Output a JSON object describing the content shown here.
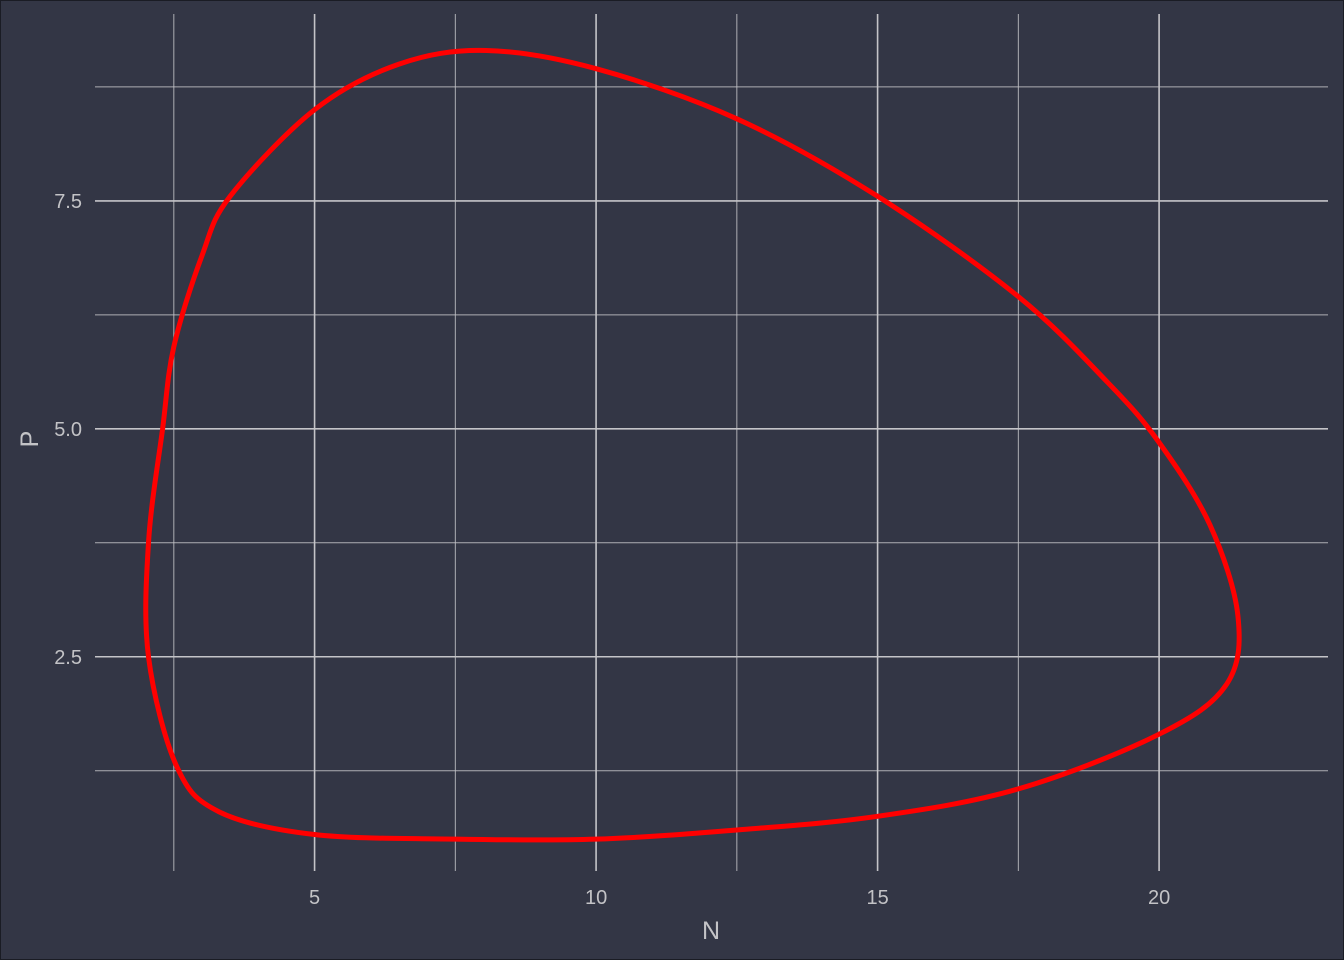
{
  "chart_data": {
    "type": "line",
    "title": "",
    "xlabel": "N",
    "ylabel": "P",
    "xlim": [
      1.1,
      23.0
    ],
    "ylim": [
      0.15,
      9.55
    ],
    "x_ticks": [
      {
        "value": 5,
        "label": "5"
      },
      {
        "value": 10,
        "label": "10"
      },
      {
        "value": 15,
        "label": "15"
      },
      {
        "value": 20,
        "label": "20"
      }
    ],
    "y_ticks": [
      {
        "value": 2.5,
        "label": "2.5"
      },
      {
        "value": 5.0,
        "label": "5.0"
      },
      {
        "value": 7.5,
        "label": "7.5"
      }
    ],
    "x_minor_gridlines": [
      2.5,
      7.5,
      12.5,
      17.5
    ],
    "y_minor_gridlines": [
      1.25,
      3.75,
      6.25,
      8.75
    ],
    "grid": true,
    "legend": "none",
    "series": [
      {
        "color": "#ff0000",
        "closed": true,
        "x": [
          8.05,
          10.0,
          12.5,
          15.0,
          17.5,
          19.1,
          20.0,
          20.9,
          21.4,
          21.2,
          20.0,
          17.5,
          15.0,
          12.5,
          10.0,
          7.5,
          5.0,
          3.3,
          2.55,
          2.05,
          2.05,
          2.3,
          2.5,
          3.0,
          3.5,
          5.0,
          6.5
        ],
        "y": [
          9.15,
          8.95,
          8.4,
          7.55,
          6.45,
          5.5,
          4.85,
          3.95,
          2.95,
          2.2,
          1.65,
          1.05,
          0.75,
          0.6,
          0.5,
          0.5,
          0.55,
          0.8,
          1.3,
          2.5,
          3.75,
          5.0,
          5.9,
          6.9,
          7.55,
          8.5,
          9.0
        ]
      }
    ]
  },
  "colors": {
    "background": "#333645",
    "gridline": "#c4c4c8",
    "text": "#c3c3c6",
    "series": "#ff0000"
  }
}
